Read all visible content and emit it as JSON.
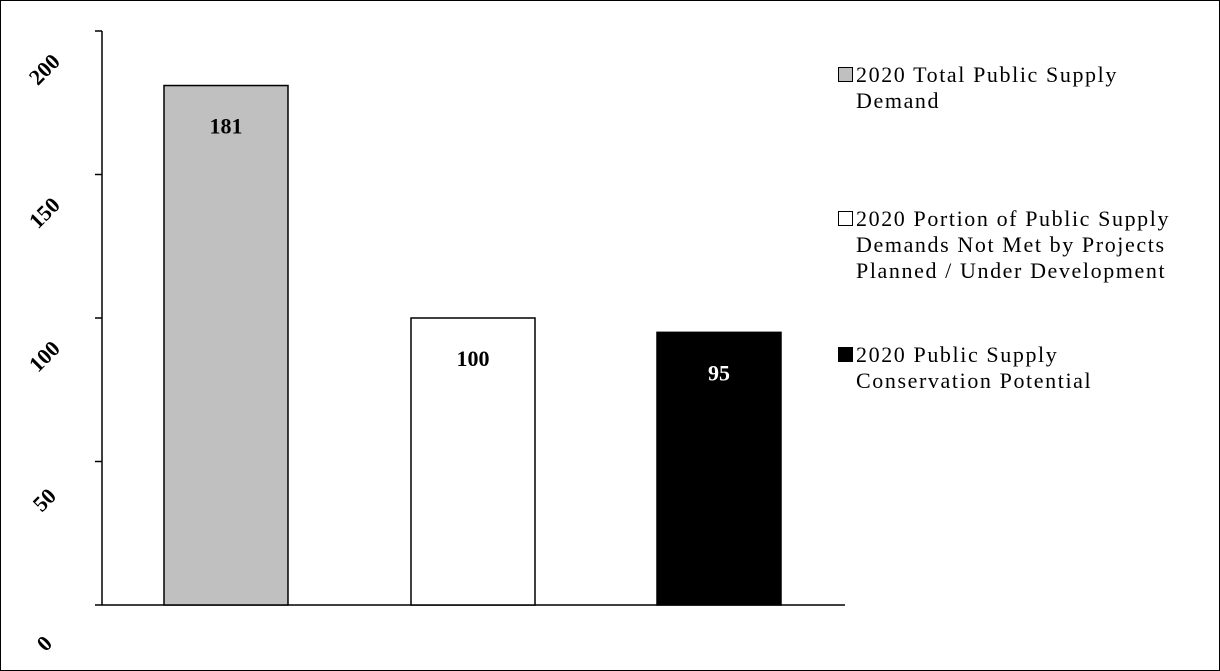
{
  "chart_data": {
    "type": "bar",
    "categories": [
      "2020 Total Public Supply Demand",
      "2020 Portion of Public Supply Demands Not Met by Projects Planned / Under Development",
      "2020 Public Supply Conservation Potential"
    ],
    "values": [
      181,
      100,
      95
    ],
    "value_labels": [
      "181",
      "100",
      "95"
    ],
    "colors": [
      "#c0c0c0",
      "#ffffff",
      "#000000"
    ],
    "value_label_colors": [
      "#000000",
      "#000000",
      "#ffffff"
    ],
    "ylim": [
      0,
      200
    ],
    "y_ticks": [
      0,
      50,
      100,
      150,
      200
    ],
    "y_tick_labels": [
      "0",
      "50",
      "100",
      "150",
      "200"
    ],
    "title": "",
    "xlabel": "",
    "ylabel": "",
    "grid": false,
    "legend": {
      "position": "right",
      "entries": [
        {
          "label": "2020 Total Public Supply Demand",
          "color": "#c0c0c0"
        },
        {
          "label": "2020 Portion of Public Supply Demands Not Met by Projects Planned / Under Development",
          "color": "#ffffff"
        },
        {
          "label": "2020 Public Supply Conservation Potential",
          "color": "#000000"
        }
      ]
    }
  }
}
